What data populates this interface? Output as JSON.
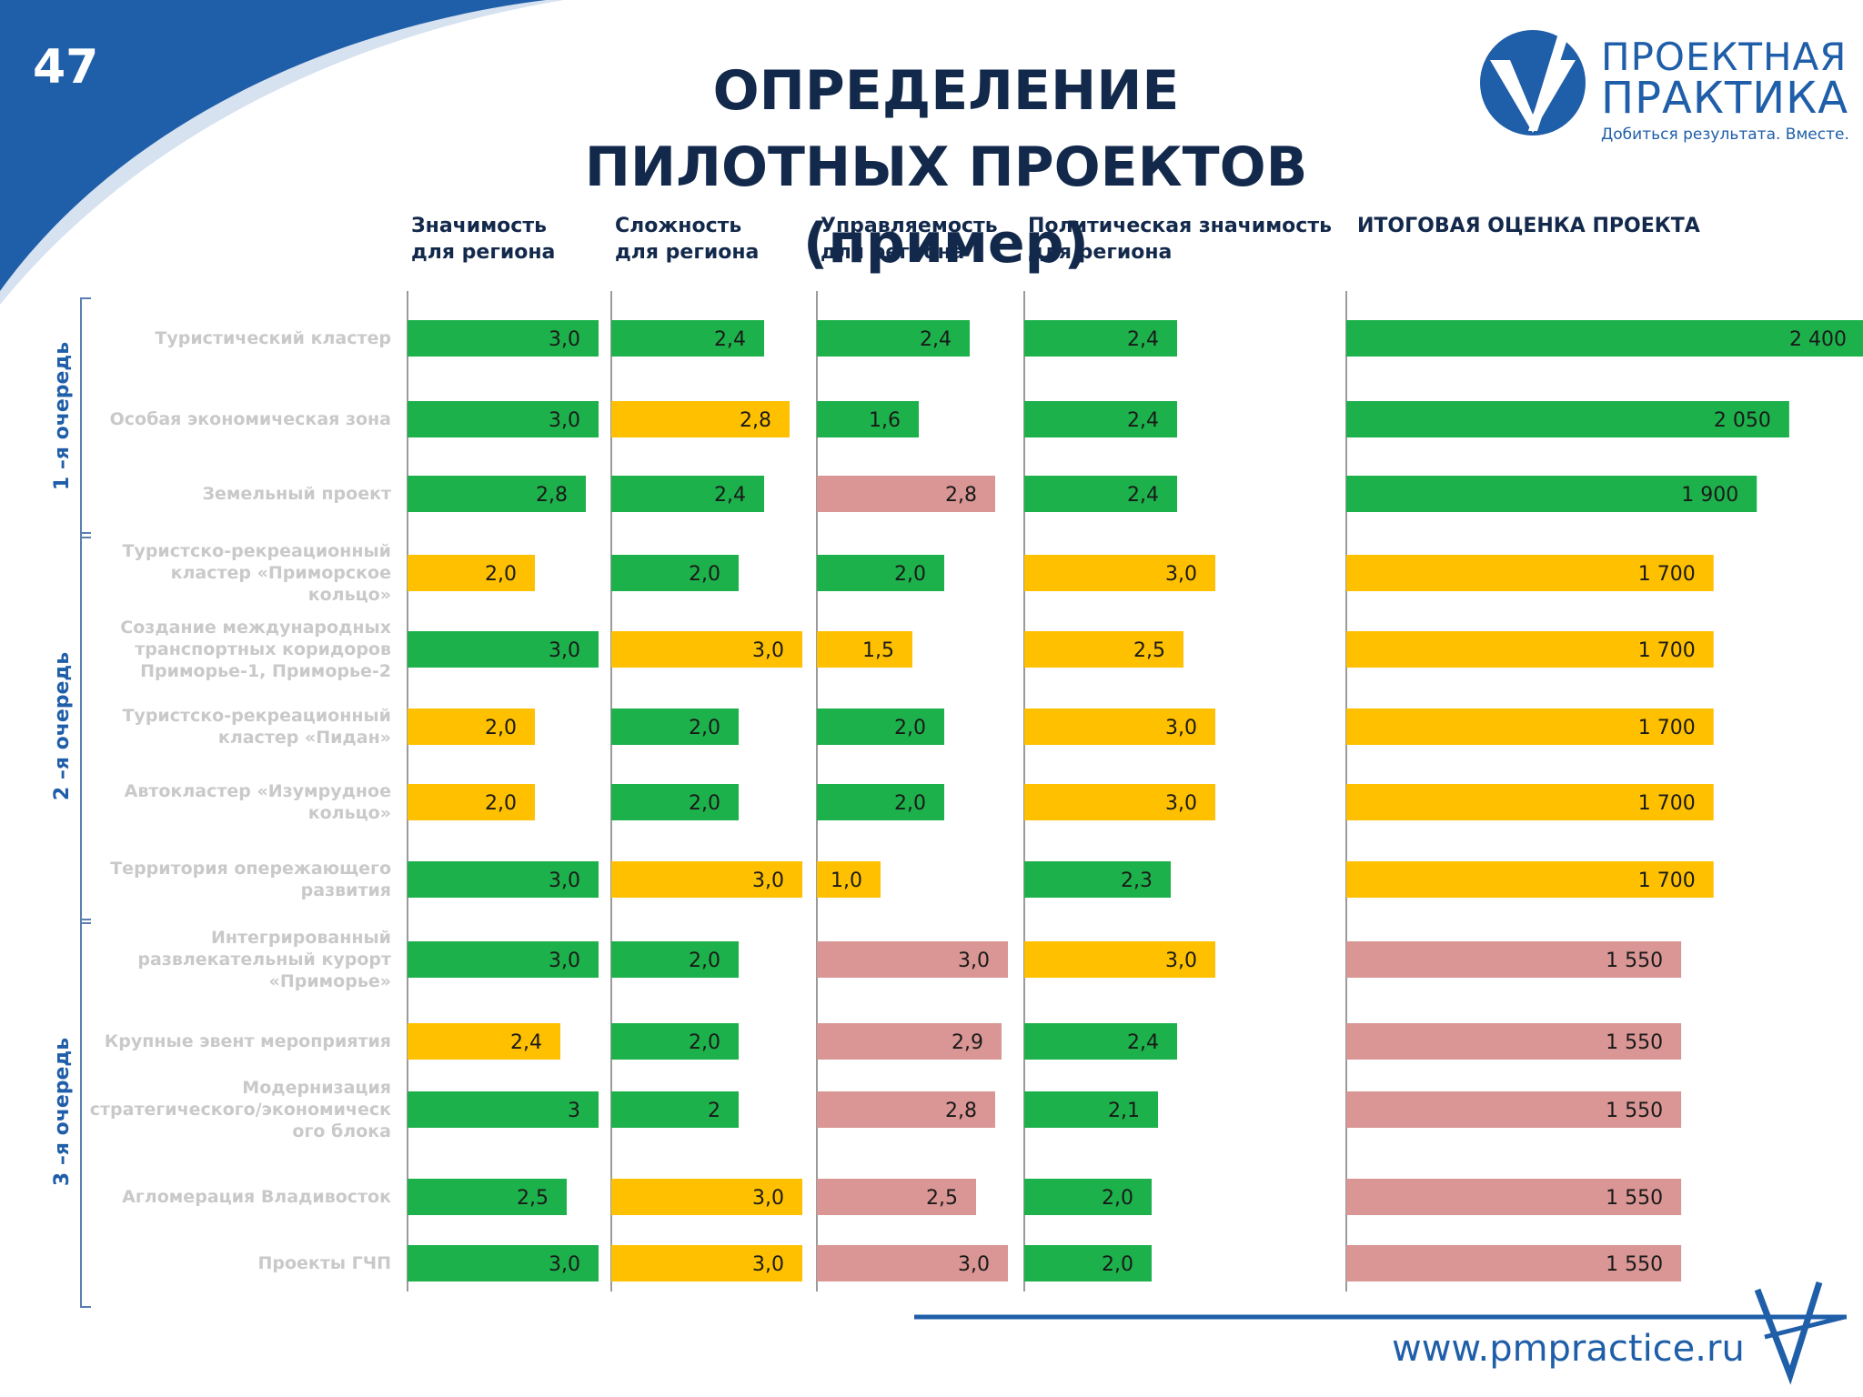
{
  "slide_number": "47",
  "title_line1": "ОПРЕДЕЛЕНИЕ",
  "title_line2": "ПИЛОТНЫХ ПРОЕКТОВ (пример)",
  "logo": {
    "name_line1": "ПРОЕКТНАЯ",
    "name_line2": "ПРАКТИКА",
    "slogan": "Добиться результата. Вместе."
  },
  "footer_url": "www.pmpractice.ru",
  "colors": {
    "green": "#1db14b",
    "yellow": "#ffc000",
    "pink": "#d99694",
    "navy": "#13294b",
    "blue": "#1f5ea8"
  },
  "chart_data": {
    "type": "bar",
    "columns": [
      {
        "line1": "Значимость",
        "line2": "для региона"
      },
      {
        "line1": "Сложность",
        "line2": "для региона"
      },
      {
        "line1": "Управляемость",
        "line2": "для региона"
      },
      {
        "line1": "Политическая значимость",
        "line2": "для региона"
      },
      {
        "line1": "ИТОГОВАЯ ОЦЕНКА ПРОЕКТА",
        "line2": ""
      }
    ],
    "groups": [
      {
        "label": "1 –я очередь",
        "rows": [
          0,
          2
        ]
      },
      {
        "label": "2 –я очередь",
        "rows": [
          3,
          7
        ]
      },
      {
        "label": "3 –я очередь",
        "rows": [
          8,
          12
        ]
      }
    ],
    "rows": [
      {
        "label": [
          "Туристический кластер"
        ],
        "values": [
          "3,0",
          "2,4",
          "2,4",
          "2,4",
          "2 400"
        ],
        "colors": [
          "green",
          "green",
          "green",
          "green",
          "green"
        ]
      },
      {
        "label": [
          "Особая экономическая зона"
        ],
        "values": [
          "3,0",
          "2,8",
          "1,6",
          "2,4",
          "2 050"
        ],
        "colors": [
          "green",
          "yellow",
          "green",
          "green",
          "green"
        ]
      },
      {
        "label": [
          "Земельный проект"
        ],
        "values": [
          "2,8",
          "2,4",
          "2,8",
          "2,4",
          "1 900"
        ],
        "colors": [
          "green",
          "green",
          "pink",
          "green",
          "green"
        ]
      },
      {
        "label": [
          "Туристско-рекреационный",
          "кластер «Приморское",
          "кольцо»"
        ],
        "values": [
          "2,0",
          "2,0",
          "2,0",
          "3,0",
          "1 700"
        ],
        "colors": [
          "yellow",
          "green",
          "green",
          "yellow",
          "yellow"
        ]
      },
      {
        "label": [
          "Создание международных",
          "транспортных коридоров",
          "Приморье-1, Приморье-2"
        ],
        "values": [
          "3,0",
          "3,0",
          "1,5",
          "2,5",
          "1 700"
        ],
        "colors": [
          "green",
          "yellow",
          "yellow",
          "yellow",
          "yellow"
        ]
      },
      {
        "label": [
          "Туристско-рекреационный",
          "кластер «Пидан»"
        ],
        "values": [
          "2,0",
          "2,0",
          "2,0",
          "3,0",
          "1 700"
        ],
        "colors": [
          "yellow",
          "green",
          "green",
          "yellow",
          "yellow"
        ]
      },
      {
        "label": [
          "Автокластер «Изумрудное",
          "кольцо»"
        ],
        "values": [
          "2,0",
          "2,0",
          "2,0",
          "3,0",
          "1 700"
        ],
        "colors": [
          "yellow",
          "green",
          "green",
          "yellow",
          "yellow"
        ]
      },
      {
        "label": [
          "Территория опережающего",
          "развития"
        ],
        "values": [
          "3,0",
          "3,0",
          "1,0",
          "2,3",
          "1 700"
        ],
        "colors": [
          "green",
          "yellow",
          "yellow",
          "green",
          "yellow"
        ]
      },
      {
        "label": [
          "Интегрированный",
          "развлекательный курорт",
          "«Приморье»"
        ],
        "values": [
          "3,0",
          "2,0",
          "3,0",
          "3,0",
          "1 550"
        ],
        "colors": [
          "green",
          "green",
          "pink",
          "yellow",
          "pink"
        ]
      },
      {
        "label": [
          "Крупные эвент мероприятия"
        ],
        "values": [
          "2,4",
          "2,0",
          "2,9",
          "2,4",
          "1 550"
        ],
        "colors": [
          "yellow",
          "green",
          "pink",
          "green",
          "pink"
        ]
      },
      {
        "label": [
          "Модернизация",
          "стратегического/экономическ",
          "ого блока"
        ],
        "values": [
          "3",
          "2",
          "2,8",
          "2,1",
          "1 550"
        ],
        "colors": [
          "green",
          "green",
          "pink",
          "green",
          "pink"
        ]
      },
      {
        "label": [
          "Агломерация Владивосток"
        ],
        "values": [
          "2,5",
          "3,0",
          "2,5",
          "2,0",
          "1 550"
        ],
        "colors": [
          "green",
          "yellow",
          "pink",
          "green",
          "pink"
        ]
      },
      {
        "label": [
          "Проекты ГЧП"
        ],
        "values": [
          "3,0",
          "3,0",
          "3,0",
          "2,0",
          "1 550"
        ],
        "colors": [
          "green",
          "yellow",
          "pink",
          "green",
          "pink"
        ]
      }
    ]
  }
}
